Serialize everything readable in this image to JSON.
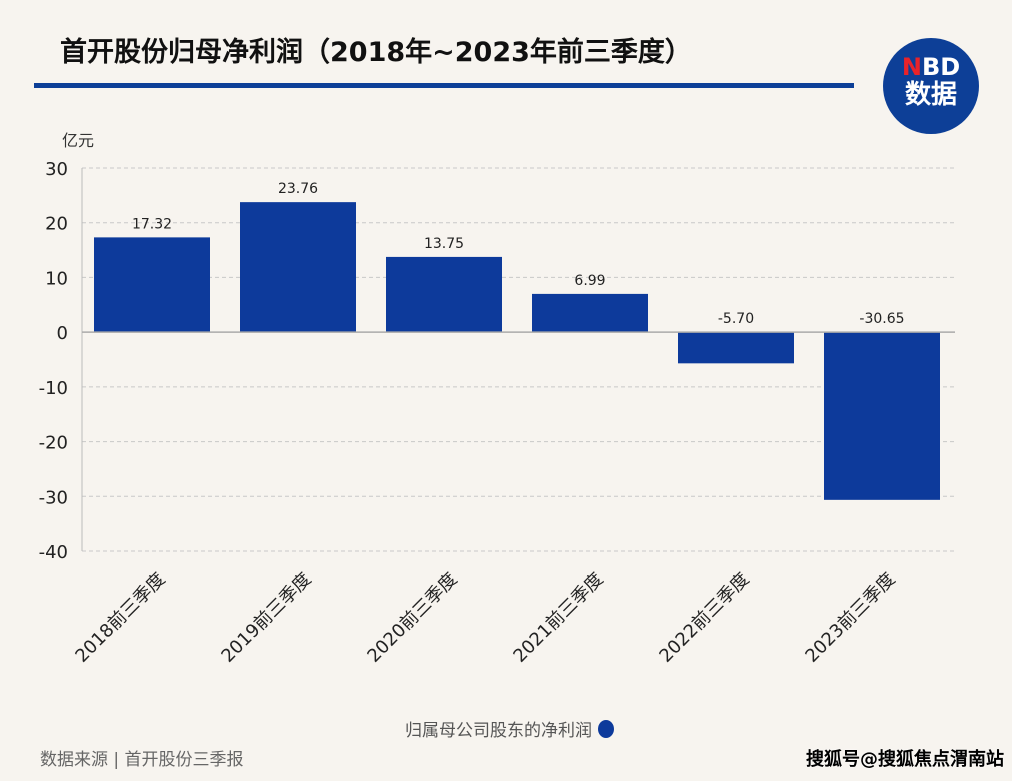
{
  "header": {
    "title": "首开股份归母净利润（2018年~2023年前三季度）",
    "logo_line1_n": "N",
    "logo_line1_rest": "BD",
    "logo_line2": "数据"
  },
  "footer": {
    "source": "数据来源 | 首开股份三季报",
    "credit": "搜狐号@搜狐焦点渭南站"
  },
  "chart_data": {
    "type": "bar",
    "ylabel": "亿元",
    "categories": [
      "2018前三季度",
      "2019前三季度",
      "2020前三季度",
      "2021前三季度",
      "2022前三季度",
      "2023前三季度"
    ],
    "series": [
      {
        "name": "归属母公司股东的净利润",
        "values": [
          17.32,
          23.76,
          13.75,
          6.99,
          -5.7,
          -30.65
        ],
        "labels": [
          "17.32",
          "23.76",
          "13.75",
          "6.99",
          "-5.70",
          "-30.65"
        ],
        "color": "#0d3a9b"
      }
    ],
    "ylim": [
      -40,
      30
    ],
    "yticks": [
      30,
      20,
      10,
      0,
      -10,
      -20,
      -30,
      -40
    ],
    "grid": true,
    "legend": "bottom-center"
  }
}
